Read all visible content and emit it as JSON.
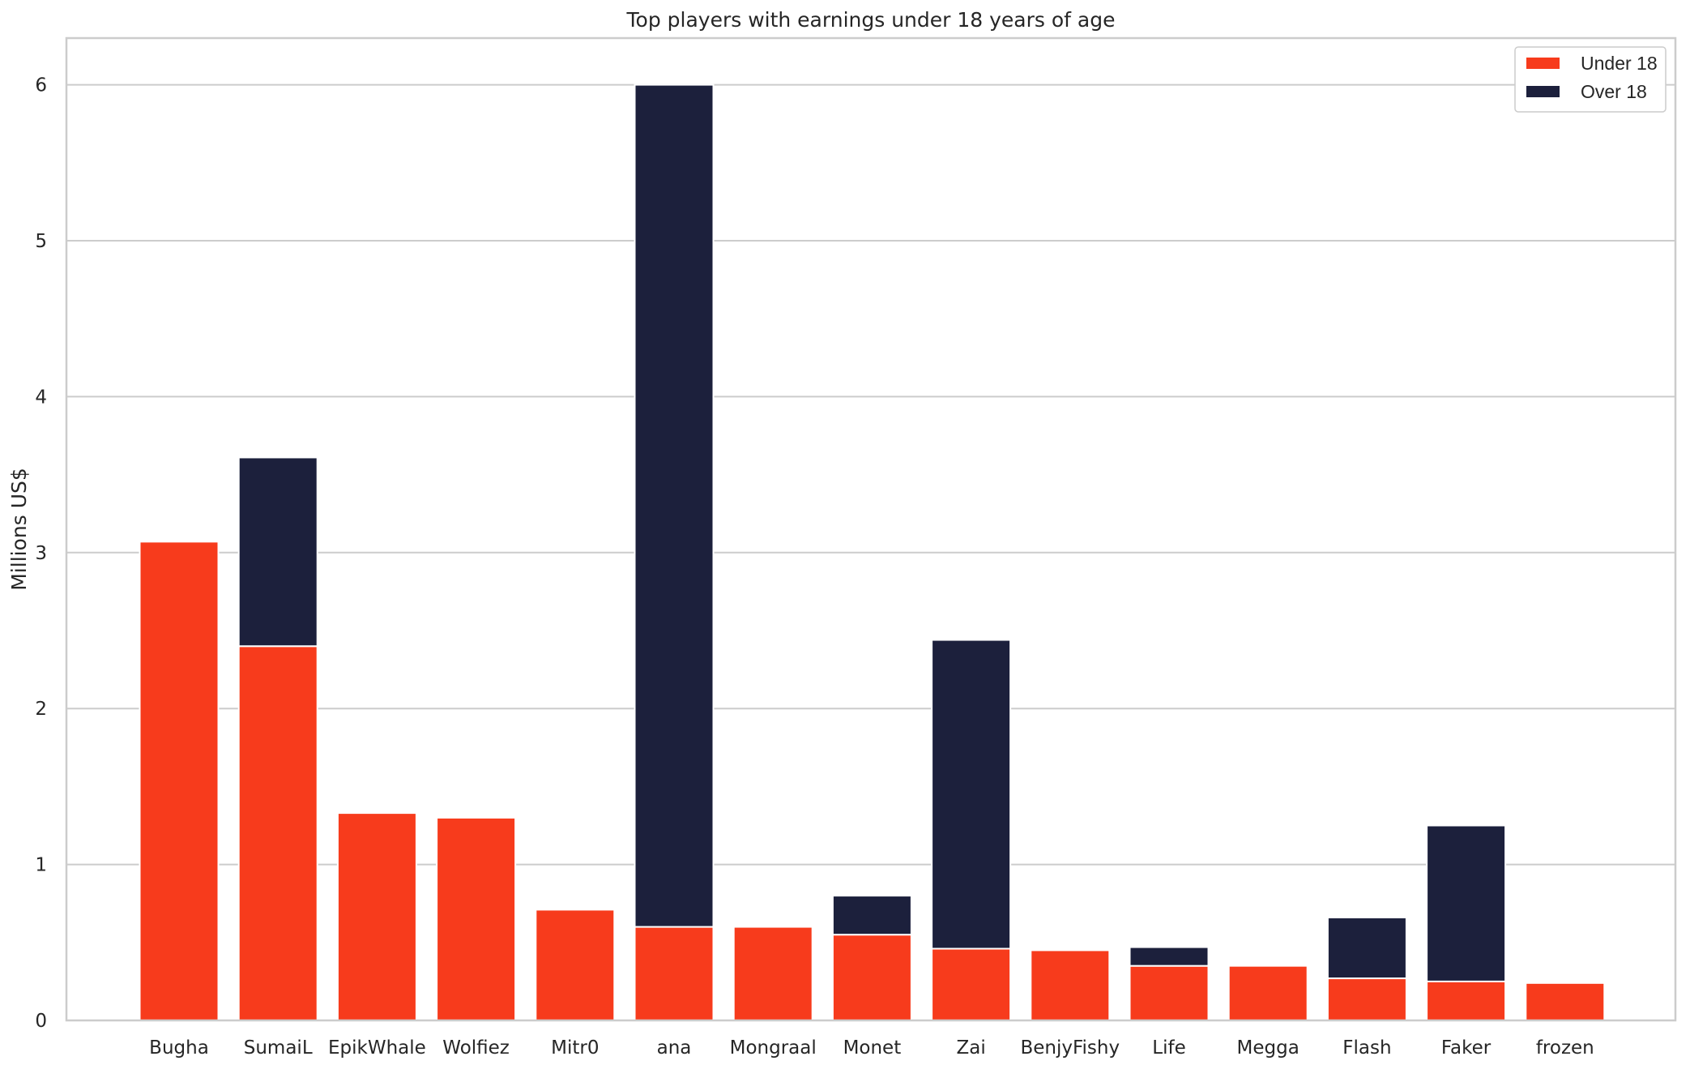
{
  "chart_data": {
    "type": "bar",
    "stacked": true,
    "title": "Top players with earnings under 18 years of age",
    "xlabel": "",
    "ylabel": "Millions US$",
    "ylim": [
      0,
      6.3
    ],
    "yticks": [
      "0",
      "1",
      "2",
      "3",
      "4",
      "5",
      "6"
    ],
    "grid": true,
    "legend_position": "top-right",
    "categories": [
      "Bugha",
      "SumaiL",
      "EpikWhale",
      "Wolfiez",
      "Mitr0",
      "ana",
      "Mongraal",
      "Monet",
      "Zai",
      "BenjyFishy",
      "Life",
      "Megga",
      "Flash",
      "Faker",
      "frozen"
    ],
    "series": [
      {
        "name": "Under 18",
        "color": "#f73b1c",
        "values": [
          3.07,
          2.4,
          1.33,
          1.3,
          0.71,
          0.6,
          0.6,
          0.55,
          0.46,
          0.45,
          0.35,
          0.35,
          0.27,
          0.25,
          0.24
        ]
      },
      {
        "name": "Over 18",
        "color": "#1c203c",
        "values": [
          0,
          1.21,
          0,
          0,
          0,
          5.4,
          0,
          0.25,
          1.98,
          0,
          0.12,
          0,
          0.39,
          1.0,
          0
        ]
      }
    ]
  }
}
